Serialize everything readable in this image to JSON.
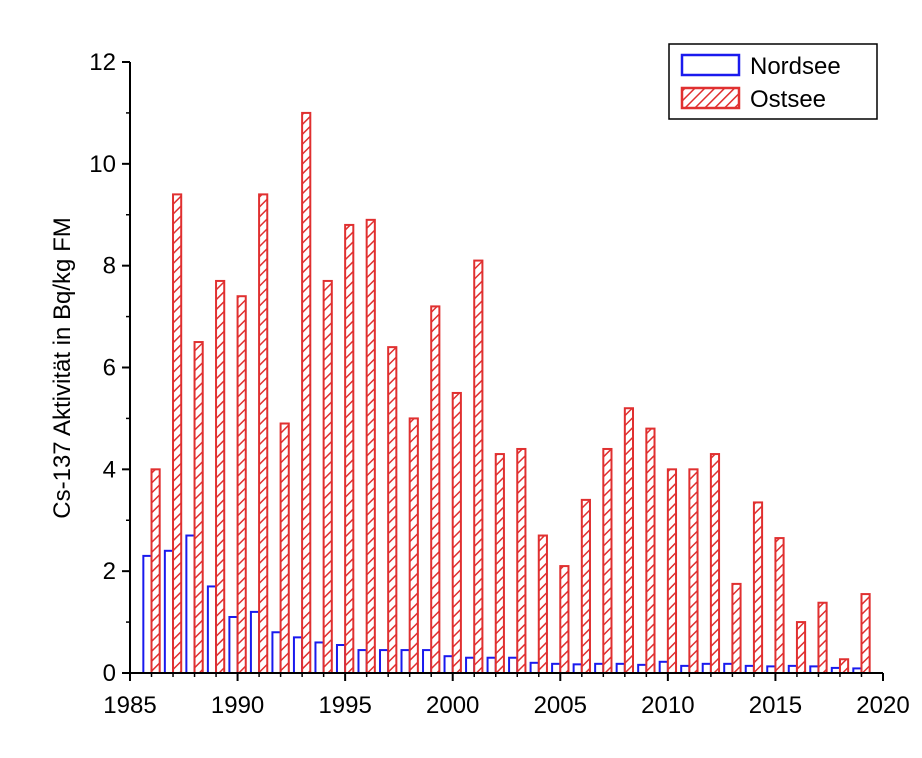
{
  "chart_data": {
    "type": "bar",
    "title": "",
    "xlabel": "",
    "ylabel": "Cs-137 Aktivität in Bq/kg FM",
    "xlim": [
      1985,
      2020
    ],
    "ylim": [
      0,
      12
    ],
    "xticks": [
      1985,
      1990,
      1995,
      2000,
      2005,
      2010,
      2015,
      2020
    ],
    "yticks": [
      0,
      2,
      4,
      6,
      8,
      10,
      12
    ],
    "legend_position": "top-right",
    "categories": [
      1986,
      1987,
      1988,
      1989,
      1990,
      1991,
      1992,
      1993,
      1994,
      1995,
      1996,
      1997,
      1998,
      1999,
      2000,
      2001,
      2002,
      2003,
      2004,
      2005,
      2006,
      2007,
      2008,
      2009,
      2010,
      2011,
      2012,
      2013,
      2014,
      2015,
      2016,
      2017,
      2018,
      2019
    ],
    "series": [
      {
        "name": "Nordsee",
        "color": "#1a1aee",
        "fill": "none",
        "values": [
          2.3,
          2.4,
          2.7,
          1.7,
          1.1,
          1.2,
          0.8,
          0.7,
          0.6,
          0.55,
          0.45,
          0.45,
          0.45,
          0.45,
          0.33,
          0.3,
          0.3,
          0.3,
          0.2,
          0.18,
          0.17,
          0.18,
          0.18,
          0.16,
          0.22,
          0.14,
          0.18,
          0.18,
          0.14,
          0.13,
          0.14,
          0.13,
          0.1,
          0.09
        ]
      },
      {
        "name": "Ostsee",
        "color": "#e03030",
        "fill": "hatched",
        "values": [
          4.0,
          9.4,
          6.5,
          7.7,
          7.4,
          9.4,
          4.9,
          11.0,
          7.7,
          8.8,
          8.9,
          6.4,
          5.0,
          7.2,
          5.5,
          8.1,
          4.3,
          4.4,
          2.7,
          2.1,
          3.4,
          4.4,
          5.2,
          4.8,
          4.0,
          4.0,
          4.3,
          1.75,
          3.35,
          2.65,
          1.0,
          1.38,
          0.27,
          1.55
        ]
      }
    ]
  }
}
